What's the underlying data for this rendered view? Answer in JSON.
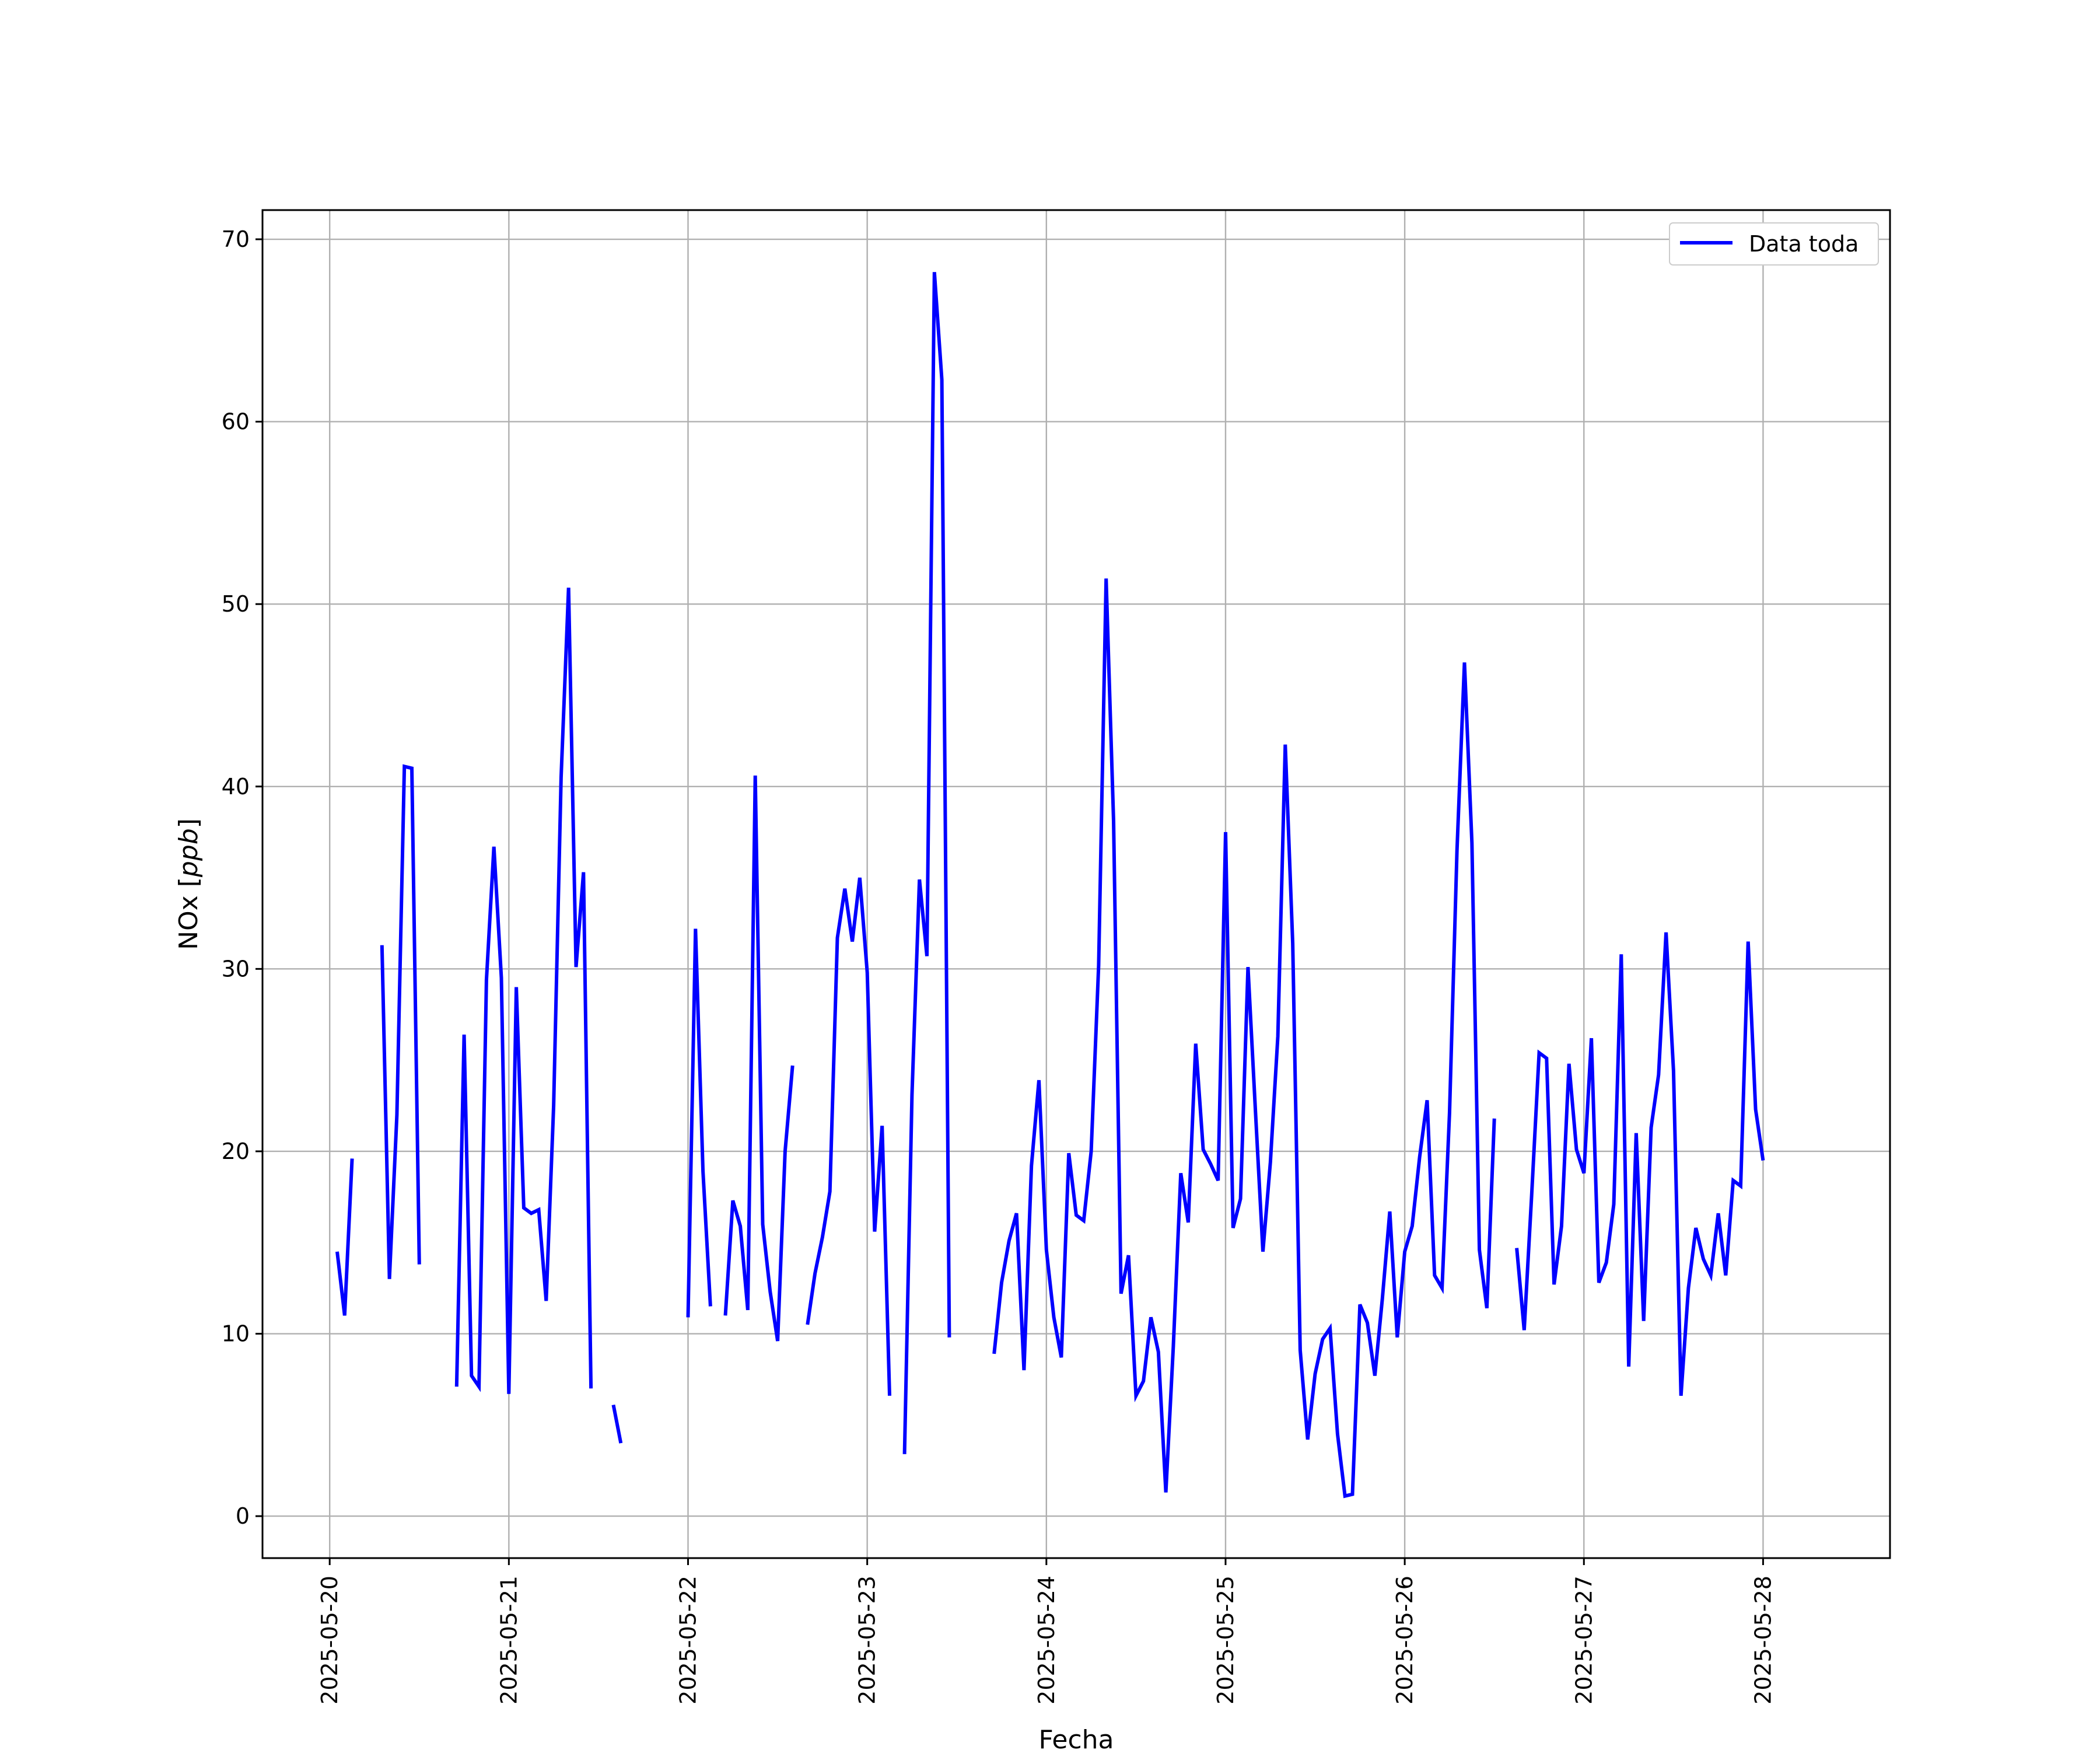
{
  "chart_data": {
    "type": "line",
    "title": "",
    "xlabel": "Fecha",
    "ylabel_text": "NOx",
    "ylabel_unit": "ppb",
    "x_ticks": [
      "2025-05-20",
      "2025-05-21",
      "2025-05-22",
      "2025-05-23",
      "2025-05-24",
      "2025-05-25",
      "2025-05-26",
      "2025-05-27",
      "2025-05-28"
    ],
    "y_ticks": [
      0,
      10,
      20,
      30,
      40,
      50,
      60,
      70
    ],
    "xlim": [
      "2025-05-19T15:00",
      "2025-05-28T17:00"
    ],
    "ylim": [
      -2.3,
      71.6
    ],
    "grid": true,
    "legend_position": "upper right",
    "series": [
      {
        "name": "Data toda",
        "color": "#0000ff",
        "segments": [
          [
            [
              "2025-05-20T01:00",
              14.5
            ],
            [
              "2025-05-20T02:00",
              11
            ],
            [
              "2025-05-20T03:00",
              19.6
            ]
          ],
          [
            [
              "2025-05-20T07:00",
              31.3
            ],
            [
              "2025-05-20T08:00",
              13
            ],
            [
              "2025-05-20T09:00",
              22
            ],
            [
              "2025-05-20T10:00",
              41.1
            ],
            [
              "2025-05-20T11:00",
              41
            ],
            [
              "2025-05-20T12:00",
              13.8
            ]
          ],
          [
            [
              "2025-05-20T17:00",
              7.1
            ],
            [
              "2025-05-20T18:00",
              26.4
            ],
            [
              "2025-05-20T19:00",
              7.7
            ],
            [
              "2025-05-20T20:00",
              7.1
            ],
            [
              "2025-05-20T21:00",
              29.4
            ],
            [
              "2025-05-20T22:00",
              36.7
            ],
            [
              "2025-05-20T23:00",
              29.5
            ],
            [
              "2025-05-21T00:00",
              6.7
            ],
            [
              "2025-05-21T01:00",
              29
            ],
            [
              "2025-05-21T02:00",
              16.9
            ],
            [
              "2025-05-21T03:00",
              16.6
            ],
            [
              "2025-05-21T04:00",
              16.8
            ],
            [
              "2025-05-21T05:00",
              11.8
            ],
            [
              "2025-05-21T06:00",
              22.5
            ],
            [
              "2025-05-21T07:00",
              40.5
            ],
            [
              "2025-05-21T08:00",
              50.9
            ],
            [
              "2025-05-21T09:00",
              30.1
            ],
            [
              "2025-05-21T10:00",
              35.3
            ],
            [
              "2025-05-21T11:00",
              7
            ]
          ],
          [
            [
              "2025-05-21T14:00",
              6.1
            ],
            [
              "2025-05-21T15:00",
              4
            ]
          ],
          [
            [
              "2025-05-22T00:00",
              10.9
            ],
            [
              "2025-05-22T01:00",
              32.2
            ],
            [
              "2025-05-22T02:00",
              18.9
            ],
            [
              "2025-05-22T03:00",
              11.5
            ]
          ],
          [
            [
              "2025-05-22T05:00",
              11
            ],
            [
              "2025-05-22T06:00",
              17.3
            ],
            [
              "2025-05-22T07:00",
              15.9
            ],
            [
              "2025-05-22T08:00",
              11.3
            ],
            [
              "2025-05-22T09:00",
              40.6
            ],
            [
              "2025-05-22T10:00",
              16
            ],
            [
              "2025-05-22T11:00",
              12.3
            ],
            [
              "2025-05-22T12:00",
              9.6
            ],
            [
              "2025-05-22T13:00",
              20
            ],
            [
              "2025-05-22T14:00",
              24.7
            ]
          ],
          [
            [
              "2025-05-22T16:00",
              10.5
            ],
            [
              "2025-05-22T17:00",
              13.3
            ],
            [
              "2025-05-22T18:00",
              15.3
            ],
            [
              "2025-05-22T19:00",
              17.8
            ],
            [
              "2025-05-22T20:00",
              31.7
            ],
            [
              "2025-05-22T21:00",
              34.4
            ],
            [
              "2025-05-22T22:00",
              31.5
            ],
            [
              "2025-05-22T23:00",
              35
            ],
            [
              "2025-05-23T00:00",
              29.8
            ],
            [
              "2025-05-23T01:00",
              15.6
            ],
            [
              "2025-05-23T02:00",
              21.4
            ],
            [
              "2025-05-23T03:00",
              6.6
            ]
          ],
          [
            [
              "2025-05-23T05:00",
              3.4
            ],
            [
              "2025-05-23T06:00",
              23.1
            ],
            [
              "2025-05-23T07:00",
              34.9
            ],
            [
              "2025-05-23T08:00",
              30.7
            ],
            [
              "2025-05-23T09:00",
              68.2
            ],
            [
              "2025-05-23T10:00",
              62.3
            ],
            [
              "2025-05-23T11:00",
              9.8
            ]
          ],
          [
            [
              "2025-05-23T17:00",
              8.9
            ],
            [
              "2025-05-23T18:00",
              12.8
            ],
            [
              "2025-05-23T19:00",
              15.1
            ],
            [
              "2025-05-23T20:00",
              16.6
            ],
            [
              "2025-05-23T21:00",
              8
            ],
            [
              "2025-05-23T22:00",
              19.2
            ],
            [
              "2025-05-23T23:00",
              23.9
            ],
            [
              "2025-05-24T00:00",
              14.6
            ],
            [
              "2025-05-24T01:00",
              10.9
            ],
            [
              "2025-05-24T02:00",
              8.7
            ],
            [
              "2025-05-24T03:00",
              19.9
            ],
            [
              "2025-05-24T04:00",
              16.5
            ],
            [
              "2025-05-24T05:00",
              16.2
            ],
            [
              "2025-05-24T06:00",
              20
            ],
            [
              "2025-05-24T07:00",
              30.2
            ],
            [
              "2025-05-24T08:00",
              51.4
            ],
            [
              "2025-05-24T09:00",
              38.1
            ],
            [
              "2025-05-24T10:00",
              12.2
            ],
            [
              "2025-05-24T11:00",
              14.3
            ],
            [
              "2025-05-24T12:00",
              6.6
            ],
            [
              "2025-05-24T13:00",
              7.4
            ],
            [
              "2025-05-24T14:00",
              10.9
            ],
            [
              "2025-05-24T15:00",
              9
            ],
            [
              "2025-05-24T16:00",
              1.3
            ],
            [
              "2025-05-24T17:00",
              9.3
            ],
            [
              "2025-05-24T18:00",
              18.8
            ],
            [
              "2025-05-24T19:00",
              16.1
            ],
            [
              "2025-05-24T20:00",
              25.9
            ],
            [
              "2025-05-24T21:00",
              20.1
            ],
            [
              "2025-05-24T22:00",
              19.3
            ],
            [
              "2025-05-24T23:00",
              18.4
            ],
            [
              "2025-05-25T00:00",
              37.5
            ],
            [
              "2025-05-25T01:00",
              15.8
            ],
            [
              "2025-05-25T02:00",
              17.4
            ],
            [
              "2025-05-25T03:00",
              30.1
            ],
            [
              "2025-05-25T04:00",
              22.2
            ],
            [
              "2025-05-25T05:00",
              14.5
            ],
            [
              "2025-05-25T06:00",
              19.4
            ],
            [
              "2025-05-25T07:00",
              26.3
            ],
            [
              "2025-05-25T08:00",
              42.3
            ],
            [
              "2025-05-25T09:00",
              31.4
            ],
            [
              "2025-05-25T10:00",
              9.1
            ],
            [
              "2025-05-25T11:00",
              4.2
            ],
            [
              "2025-05-25T12:00",
              7.8
            ],
            [
              "2025-05-25T13:00",
              9.7
            ],
            [
              "2025-05-25T14:00",
              10.3
            ],
            [
              "2025-05-25T15:00",
              4.5
            ],
            [
              "2025-05-25T16:00",
              1.1
            ],
            [
              "2025-05-25T17:00",
              1.2
            ],
            [
              "2025-05-25T18:00",
              11.6
            ],
            [
              "2025-05-25T19:00",
              10.6
            ],
            [
              "2025-05-25T20:00",
              7.7
            ],
            [
              "2025-05-25T21:00",
              11.9
            ],
            [
              "2025-05-25T22:00",
              16.7
            ],
            [
              "2025-05-25T23:00",
              9.8
            ],
            [
              "2025-05-26T00:00",
              14.5
            ],
            [
              "2025-05-26T01:00",
              15.9
            ],
            [
              "2025-05-26T02:00",
              19.7
            ],
            [
              "2025-05-26T03:00",
              22.8
            ],
            [
              "2025-05-26T04:00",
              13.2
            ],
            [
              "2025-05-26T05:00",
              12.5
            ],
            [
              "2025-05-26T06:00",
              22.1
            ],
            [
              "2025-05-26T07:00",
              36.5
            ],
            [
              "2025-05-26T08:00",
              46.8
            ],
            [
              "2025-05-26T09:00",
              36.9
            ],
            [
              "2025-05-26T10:00",
              14.6
            ],
            [
              "2025-05-26T11:00",
              11.4
            ],
            [
              "2025-05-26T12:00",
              21.8
            ]
          ],
          [
            [
              "2025-05-26T15:00",
              14.7
            ],
            [
              "2025-05-26T16:00",
              10.2
            ],
            [
              "2025-05-26T17:00",
              17.6
            ],
            [
              "2025-05-26T18:00",
              25.4
            ],
            [
              "2025-05-26T19:00",
              25.1
            ],
            [
              "2025-05-26T20:00",
              12.7
            ],
            [
              "2025-05-26T21:00",
              15.9
            ],
            [
              "2025-05-26T22:00",
              24.8
            ],
            [
              "2025-05-26T23:00",
              20.1
            ],
            [
              "2025-05-27T00:00",
              18.8
            ],
            [
              "2025-05-27T01:00",
              26.2
            ],
            [
              "2025-05-27T02:00",
              12.8
            ],
            [
              "2025-05-27T03:00",
              13.9
            ],
            [
              "2025-05-27T04:00",
              17.1
            ],
            [
              "2025-05-27T05:00",
              30.8
            ],
            [
              "2025-05-27T06:00",
              8.2
            ],
            [
              "2025-05-27T07:00",
              21
            ],
            [
              "2025-05-27T08:00",
              10.7
            ],
            [
              "2025-05-27T09:00",
              21.3
            ],
            [
              "2025-05-27T10:00",
              24.2
            ],
            [
              "2025-05-27T11:00",
              32
            ],
            [
              "2025-05-27T12:00",
              24.4
            ],
            [
              "2025-05-27T13:00",
              6.6
            ],
            [
              "2025-05-27T14:00",
              12.5
            ],
            [
              "2025-05-27T15:00",
              15.8
            ],
            [
              "2025-05-27T16:00",
              14.1
            ],
            [
              "2025-05-27T17:00",
              13.2
            ],
            [
              "2025-05-27T18:00",
              16.6
            ],
            [
              "2025-05-27T19:00",
              13.2
            ],
            [
              "2025-05-27T20:00",
              18.4
            ],
            [
              "2025-05-27T21:00",
              18.1
            ],
            [
              "2025-05-27T22:00",
              31.5
            ],
            [
              "2025-05-27T23:00",
              22.3
            ],
            [
              "2025-05-28T00:00",
              19.5
            ]
          ]
        ]
      }
    ]
  }
}
